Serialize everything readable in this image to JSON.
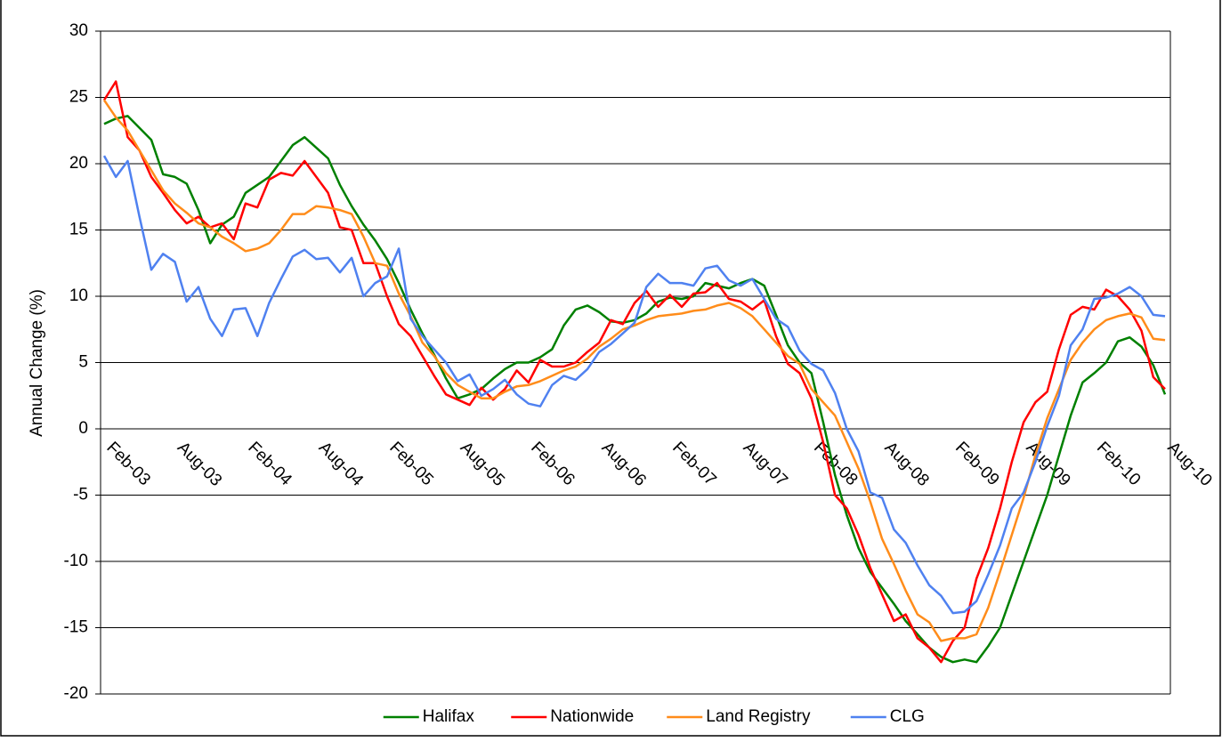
{
  "chart_data": {
    "type": "line",
    "y_label": "Annual Change (%)",
    "categories": [
      "Feb-03",
      null,
      null,
      null,
      null,
      null,
      "Aug-03",
      null,
      null,
      null,
      null,
      null,
      "Feb-04",
      null,
      null,
      null,
      null,
      null,
      "Aug-04",
      null,
      null,
      null,
      null,
      null,
      "Feb-05",
      null,
      null,
      null,
      null,
      null,
      "Aug-05",
      null,
      null,
      null,
      null,
      null,
      "Feb-06",
      null,
      null,
      null,
      null,
      null,
      "Aug-06",
      null,
      null,
      null,
      null,
      null,
      "Feb-07",
      null,
      null,
      null,
      null,
      null,
      "Aug-07",
      null,
      null,
      null,
      null,
      null,
      "Feb-08",
      null,
      null,
      null,
      null,
      null,
      "Aug-08",
      null,
      null,
      null,
      null,
      null,
      "Feb-09",
      null,
      null,
      null,
      null,
      null,
      "Aug-09",
      null,
      null,
      null,
      null,
      null,
      "Feb-10",
      null,
      null,
      null,
      null,
      null,
      "Aug-10"
    ],
    "series": [
      {
        "name": "Halifax",
        "color": "#008000",
        "values": [
          23,
          23.4,
          23.6,
          22.7,
          21.8,
          19.2,
          19.0,
          18.5,
          16.5,
          14.0,
          15.4,
          16.0,
          17.8,
          18.4,
          19.0,
          20.2,
          21.4,
          22.0,
          21.2,
          20.4,
          18.4,
          16.8,
          15.4,
          14.2,
          12.8,
          11.0,
          9.0,
          7.2,
          5.6,
          3.8,
          2.3,
          2.6,
          3.0,
          3.8,
          4.5,
          5.0,
          5.0,
          5.4,
          6.0,
          7.8,
          9.0,
          9.3,
          8.8,
          8.1,
          8.0,
          8.2,
          8.7,
          9.6,
          9.9,
          9.8,
          10.0,
          11.0,
          10.8,
          10.6,
          11.0,
          11.3,
          10.8,
          8.6,
          6.3,
          5.0,
          4.2,
          0.5,
          -3.5,
          -6.5,
          -9.0,
          -10.8,
          -12.0,
          -13.2,
          -14.5,
          -15.5,
          -16.5,
          -17.2,
          -17.6,
          -17.4,
          -17.6,
          -16.4,
          -15.0,
          -12.5,
          -10.0,
          -7.5,
          -5.0,
          -2.0,
          1.0,
          3.5,
          4.2,
          5.0,
          6.6,
          6.9,
          6.2,
          4.8,
          2.6
        ]
      },
      {
        "name": "Nationwide",
        "color": "#ff0000",
        "values": [
          24.8,
          26.2,
          22.0,
          21.0,
          19.0,
          17.8,
          16.5,
          15.5,
          16.0,
          15.2,
          15.5,
          14.3,
          17.0,
          16.7,
          18.8,
          19.3,
          19.1,
          20.2,
          19.0,
          17.8,
          15.2,
          15.0,
          12.5,
          12.5,
          10.0,
          7.9,
          7.0,
          5.5,
          4.0,
          2.6,
          2.2,
          1.8,
          3.1,
          2.2,
          3.0,
          4.4,
          3.5,
          5.2,
          4.7,
          4.7,
          5.0,
          5.8,
          6.5,
          8.2,
          7.9,
          9.5,
          10.4,
          9.2,
          10.1,
          9.2,
          10.2,
          10.3,
          11.0,
          9.8,
          9.6,
          9.0,
          9.7,
          7.0,
          4.9,
          4.2,
          2.3,
          -1.0,
          -5.0,
          -6.0,
          -8.0,
          -10.5,
          -12.5,
          -14.5,
          -14.0,
          -15.8,
          -16.5,
          -17.6,
          -16.0,
          -15.0,
          -11.3,
          -9.0,
          -6.0,
          -2.5,
          0.5,
          2.0,
          2.8,
          6.0,
          8.6,
          9.2,
          9.0,
          10.5,
          10.0,
          9.0,
          7.4,
          3.9,
          3.0
        ]
      },
      {
        "name": "Land Registry",
        "color": "#ff8c1a",
        "values": [
          24.8,
          23.5,
          22.5,
          21.0,
          19.5,
          18.0,
          17.0,
          16.3,
          15.5,
          15.2,
          14.5,
          14.0,
          13.4,
          13.6,
          14.0,
          15.0,
          16.2,
          16.2,
          16.8,
          16.7,
          16.5,
          16.2,
          14.5,
          12.5,
          12.3,
          10.2,
          8.5,
          6.5,
          5.5,
          4.2,
          3.3,
          2.8,
          2.3,
          2.3,
          2.8,
          3.2,
          3.3,
          3.6,
          4.0,
          4.4,
          4.7,
          5.3,
          6.2,
          6.8,
          7.5,
          7.8,
          8.2,
          8.5,
          8.6,
          8.7,
          8.9,
          9.0,
          9.3,
          9.5,
          9.1,
          8.5,
          7.5,
          6.5,
          5.5,
          4.9,
          3.0,
          2.0,
          1.0,
          -1.0,
          -3.0,
          -5.5,
          -8.3,
          -10.2,
          -12.2,
          -14.0,
          -14.6,
          -16.0,
          -15.8,
          -15.8,
          -15.5,
          -13.5,
          -10.8,
          -8.0,
          -5.2,
          -2.0,
          0.8,
          3.0,
          5.2,
          6.5,
          7.5,
          8.2,
          8.5,
          8.7,
          8.4,
          6.8,
          6.7
        ]
      },
      {
        "name": "CLG",
        "color": "#4f81f0",
        "values": [
          20.6,
          19.0,
          20.2,
          16.0,
          12.0,
          13.2,
          12.6,
          9.6,
          10.7,
          8.3,
          7.0,
          9.0,
          9.1,
          7.0,
          9.5,
          11.3,
          13.0,
          13.5,
          12.8,
          12.9,
          11.8,
          12.9,
          10.0,
          11.0,
          11.5,
          13.6,
          8.3,
          7.0,
          6.0,
          5.0,
          3.6,
          4.1,
          2.5,
          3.0,
          3.7,
          2.6,
          1.9,
          1.7,
          3.3,
          4.0,
          3.7,
          4.5,
          5.8,
          6.4,
          7.2,
          8.0,
          10.7,
          11.7,
          11.0,
          11.0,
          10.8,
          12.1,
          12.3,
          11.2,
          10.8,
          11.3,
          9.8,
          8.3,
          7.7,
          5.9,
          4.9,
          4.4,
          2.7,
          0,
          -1.7,
          -4.8,
          -5.2,
          -7.6,
          -8.6,
          -10.3,
          -11.8,
          -12.6,
          -13.9,
          -13.8,
          -13.0,
          -11.0,
          -8.8,
          -6.0,
          -4.8,
          -2.5,
          0.2,
          2.5,
          6.3,
          7.5,
          9.8,
          9.9,
          10.2,
          10.7,
          10.0,
          8.6,
          8.5
        ]
      }
    ],
    "ylim": [
      -20,
      30
    ],
    "yticks": [
      -20,
      -15,
      -10,
      -5,
      0,
      5,
      10,
      15,
      20,
      25,
      30
    ],
    "grid": true,
    "legend": "bottom"
  }
}
